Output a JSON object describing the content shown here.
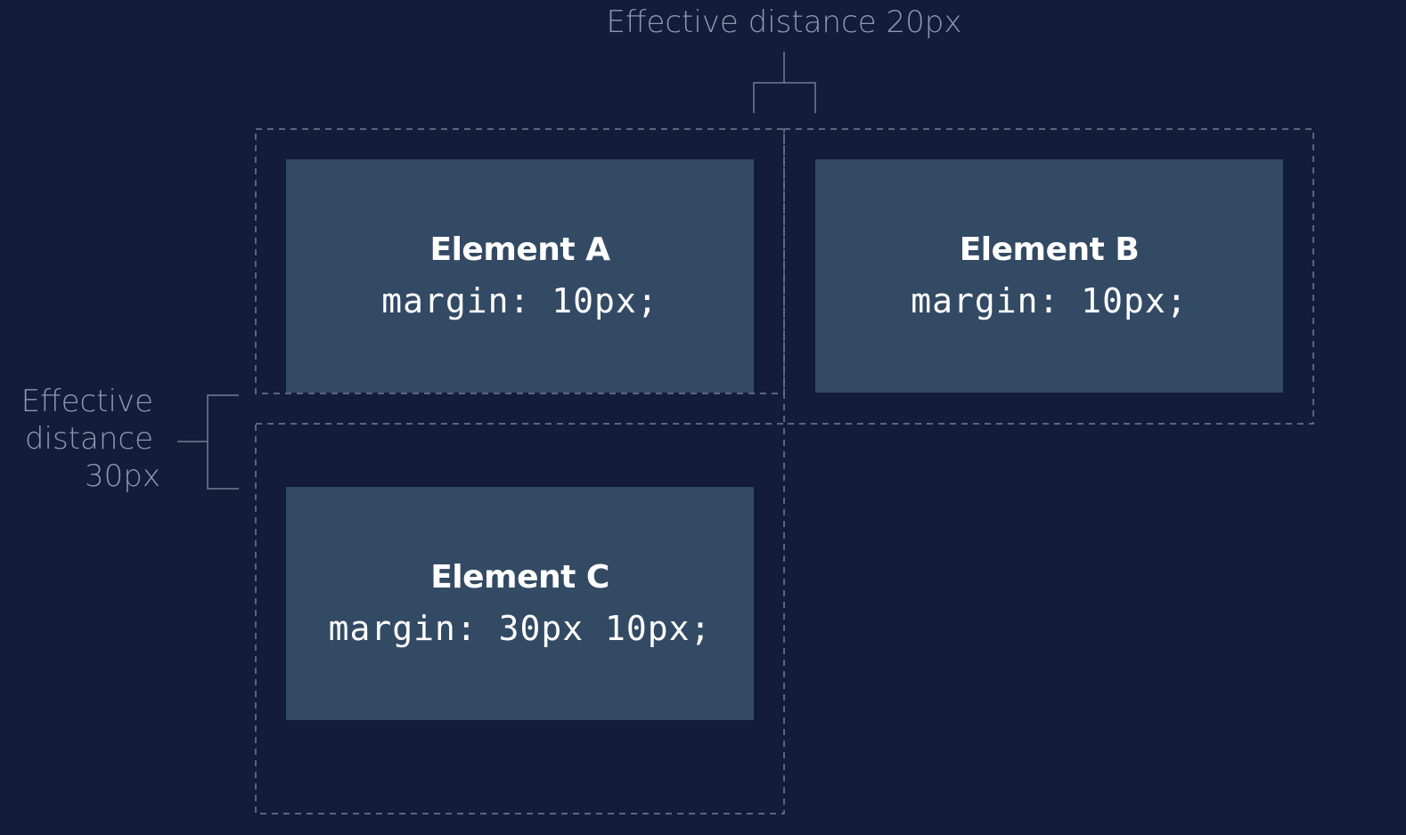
{
  "annotations": {
    "top": "Effective distance 20px",
    "left": {
      "line1": "Effective",
      "line2": "distance",
      "line3": "30px"
    }
  },
  "elements": [
    {
      "title": "Element A",
      "code": "margin: 10px;"
    },
    {
      "title": "Element B",
      "code": "margin: 10px;"
    },
    {
      "title": "Element C",
      "code": "margin: 30px 10px;"
    }
  ],
  "colors": {
    "background": "#131c39",
    "box": "#334a64",
    "guide": "#6f7f95",
    "label": "#8a9ab0",
    "text": "#ffffff"
  }
}
